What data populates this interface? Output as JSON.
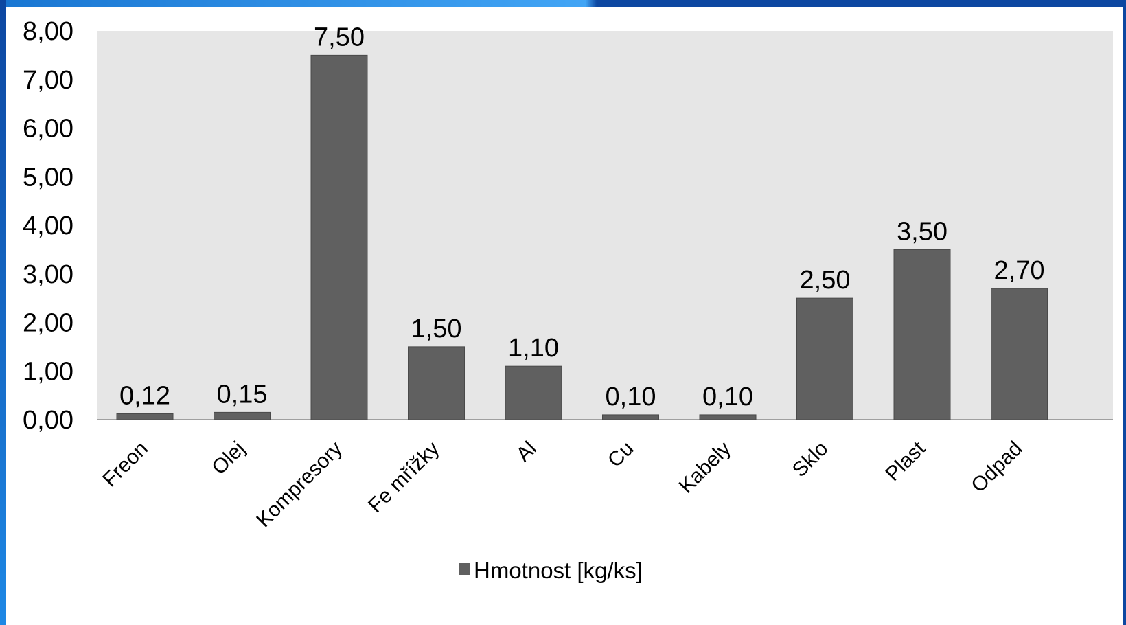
{
  "colors": {
    "bar": "#606060",
    "plot_background": "#e6e6e6",
    "frame": "#1565c0"
  },
  "chart_data": {
    "type": "bar",
    "categories": [
      "Freon",
      "Olej",
      "Kompresory",
      "Fe mřížky",
      "Al",
      "Cu",
      "Kabely",
      "Sklo",
      "Plast",
      "Odpad"
    ],
    "series": [
      {
        "name": "Hmotnost [kg/ks]",
        "values": [
          0.12,
          0.15,
          7.5,
          1.5,
          1.1,
          0.1,
          0.1,
          2.5,
          3.5,
          2.7
        ],
        "data_labels": [
          "0,12",
          "0,15",
          "7,50",
          "1,50",
          "1,10",
          "0,10",
          "0,10",
          "2,50",
          "3,50",
          "2,70"
        ]
      }
    ],
    "y_ticks": [
      "0,00",
      "1,00",
      "2,00",
      "3,00",
      "4,00",
      "5,00",
      "6,00",
      "7,00",
      "8,00"
    ],
    "ylim": [
      0,
      8
    ],
    "grid": false,
    "legend_position": "bottom"
  }
}
